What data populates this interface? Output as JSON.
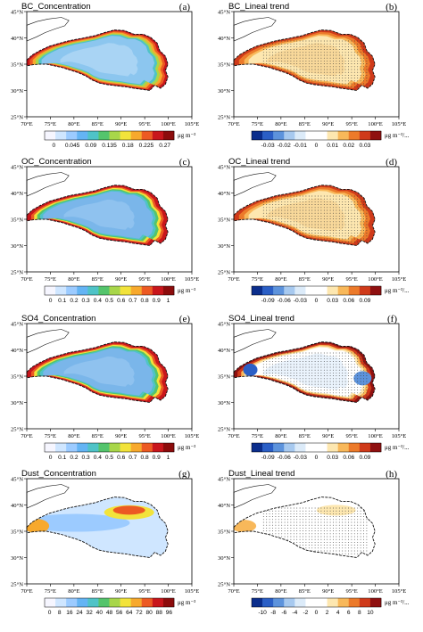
{
  "figure": {
    "lon_labels": [
      "70°E",
      "75°E",
      "80°E",
      "85°E",
      "90°E",
      "95°E",
      "100°E",
      "105°E"
    ],
    "lat_labels": [
      "25°N",
      "30°N",
      "35°N",
      "40°N",
      "45°N"
    ],
    "unit_label": "μg m⁻³",
    "trend_unit_label": "μg m⁻³/...",
    "panels": [
      {
        "id": "a",
        "title": "BC_Concentration",
        "letter": "(a)",
        "type": "concentration",
        "palette": "rainbow",
        "colorbar_labels": [
          "0",
          "0.045",
          "0.09",
          "0.135",
          "0.18",
          "0.225",
          "0.27"
        ],
        "stippled": false
      },
      {
        "id": "b",
        "title": "BC_Lineal trend",
        "letter": "(b)",
        "type": "trend",
        "palette": "diverging",
        "colorbar_labels": [
          "-0.03",
          "-0.02",
          "-0.01",
          "0",
          "0.01",
          "0.02",
          "0.03"
        ],
        "stippled": true
      },
      {
        "id": "c",
        "title": "OC_Concentration",
        "letter": "(c)",
        "type": "concentration",
        "palette": "rainbow",
        "colorbar_labels": [
          "0",
          "0.1",
          "0.2",
          "0.3",
          "0.4",
          "0.5",
          "0.6",
          "0.7",
          "0.8",
          "0.9",
          "1"
        ],
        "stippled": false
      },
      {
        "id": "d",
        "title": "OC_Lineal trend",
        "letter": "(d)",
        "type": "trend",
        "palette": "diverging",
        "colorbar_labels": [
          "-0.09",
          "-0.06",
          "-0.03",
          "0",
          "0.03",
          "0.06",
          "0.09"
        ],
        "stippled": true
      },
      {
        "id": "e",
        "title": "SO4_Concentration",
        "letter": "(e)",
        "type": "concentration",
        "palette": "rainbow",
        "colorbar_labels": [
          "0",
          "0.1",
          "0.2",
          "0.3",
          "0.4",
          "0.5",
          "0.6",
          "0.7",
          "0.8",
          "0.9",
          "1"
        ],
        "stippled": false
      },
      {
        "id": "f",
        "title": "SO4_Lineal trend",
        "letter": "(f)",
        "type": "trend_low",
        "palette": "diverging",
        "colorbar_labels": [
          "-0.09",
          "-0.06",
          "-0.03",
          "0",
          "0.03",
          "0.06",
          "0.09"
        ],
        "stippled": true
      },
      {
        "id": "g",
        "title": "Dust_Concentration",
        "letter": "(g)",
        "type": "dust",
        "palette": "rainbow",
        "colorbar_labels": [
          "0",
          "8",
          "16",
          "24",
          "32",
          "40",
          "48",
          "56",
          "64",
          "72",
          "80",
          "88",
          "96"
        ],
        "stippled": false
      },
      {
        "id": "h",
        "title": "Dust_Lineal trend",
        "letter": "(h)",
        "type": "dust_trend",
        "palette": "diverging",
        "colorbar_labels": [
          "-10",
          "-8",
          "-6",
          "-4",
          "-2",
          "0",
          "2",
          "4",
          "6",
          "8",
          "10"
        ],
        "stippled": true
      }
    ],
    "colors": {
      "rainbow": [
        "#f6f6ff",
        "#cfe6ff",
        "#9ccbff",
        "#64b4f4",
        "#4fc3c7",
        "#54c46c",
        "#a8d64a",
        "#f2e33b",
        "#f7a92d",
        "#ec5a23",
        "#c8161c",
        "#8c0c0c"
      ],
      "diverging": [
        "#0b2e8c",
        "#2b5fc6",
        "#5d93dc",
        "#a7c9ef",
        "#dcebf9",
        "#ffffff",
        "#ffffff",
        "#fde7b0",
        "#f8b85a",
        "#ec7a2a",
        "#cf3a1a",
        "#8f1010"
      ]
    }
  }
}
